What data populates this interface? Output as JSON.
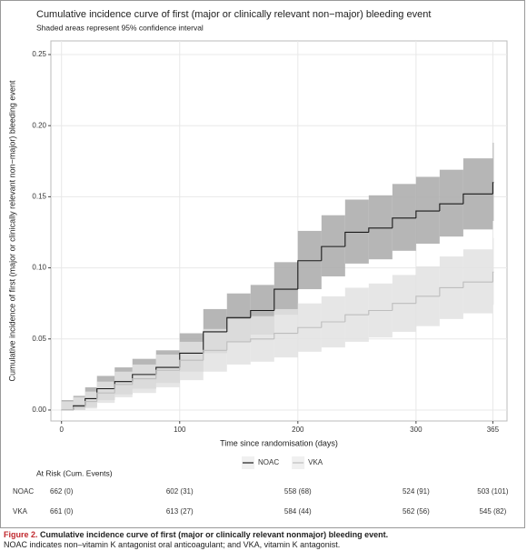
{
  "chart_data": {
    "type": "step",
    "title": "Cumulative incidence curve of first (major or clinically relevant non−major) bleeding event",
    "subtitle": "Shaded areas represent 95% confidence interval",
    "x_label": "Time since randomisation (days)",
    "y_label": "Cumulative incidence of first (major or clinically relevant non−major) bleeding event",
    "x": [
      0,
      10,
      20,
      30,
      45,
      60,
      80,
      100,
      120,
      140,
      160,
      180,
      200,
      220,
      240,
      260,
      280,
      300,
      320,
      340,
      365
    ],
    "series": [
      {
        "name": "NOAC",
        "color": "#1a1a1a",
        "fill": "#a9a9a9",
        "values": [
          0,
          0.003,
          0.008,
          0.015,
          0.02,
          0.025,
          0.03,
          0.04,
          0.055,
          0.065,
          0.07,
          0.085,
          0.105,
          0.115,
          0.125,
          0.128,
          0.135,
          0.14,
          0.145,
          0.152,
          0.16
        ],
        "lower": [
          0,
          0,
          0.002,
          0.007,
          0.011,
          0.015,
          0.019,
          0.027,
          0.04,
          0.048,
          0.053,
          0.067,
          0.085,
          0.094,
          0.103,
          0.106,
          0.112,
          0.117,
          0.122,
          0.127,
          0.133
        ],
        "upper": [
          0.007,
          0.01,
          0.016,
          0.024,
          0.03,
          0.036,
          0.042,
          0.054,
          0.071,
          0.082,
          0.088,
          0.104,
          0.126,
          0.137,
          0.148,
          0.151,
          0.159,
          0.164,
          0.169,
          0.177,
          0.188
        ]
      },
      {
        "name": "VKA",
        "color": "#bdbdbd",
        "fill": "#e2e2e2",
        "values": [
          0,
          0.002,
          0.006,
          0.012,
          0.018,
          0.022,
          0.028,
          0.035,
          0.042,
          0.048,
          0.05,
          0.054,
          0.058,
          0.062,
          0.067,
          0.07,
          0.075,
          0.08,
          0.086,
          0.09,
          0.097
        ],
        "lower": [
          0,
          0,
          0.001,
          0.005,
          0.009,
          0.012,
          0.016,
          0.021,
          0.027,
          0.032,
          0.034,
          0.037,
          0.041,
          0.044,
          0.048,
          0.051,
          0.055,
          0.059,
          0.064,
          0.068,
          0.074
        ],
        "upper": [
          0.006,
          0.009,
          0.013,
          0.02,
          0.027,
          0.032,
          0.039,
          0.048,
          0.057,
          0.064,
          0.066,
          0.071,
          0.075,
          0.08,
          0.086,
          0.089,
          0.095,
          0.101,
          0.108,
          0.113,
          0.121
        ]
      }
    ],
    "xlim": [
      -9,
      377
    ],
    "ylim": [
      -0.0077,
      0.2596
    ],
    "xticks": [
      0,
      100,
      200,
      300,
      365
    ],
    "yticks": [
      {
        "value": 0,
        "label": "0.00"
      },
      {
        "value": 0.05,
        "label": "0.05"
      },
      {
        "value": 0.1,
        "label": "0.10"
      },
      {
        "value": 0.15,
        "label": "0.15"
      },
      {
        "value": 0.2,
        "label": "0.20"
      },
      {
        "value": 0.25,
        "label": "0.25"
      }
    ],
    "grid": true,
    "legend": "bottom",
    "risk_table": {
      "title": "At Risk (Cum. Events)",
      "rows": [
        {
          "name": "NOAC",
          "cells": [
            "662 (0)",
            "602 (31)",
            "558 (68)",
            "524 (91)",
            "503 (101)"
          ]
        },
        {
          "name": "VKA",
          "cells": [
            "661 (0)",
            "613 (27)",
            "584 (44)",
            "562 (56)",
            "545 (82)"
          ]
        }
      ]
    }
  },
  "caption": {
    "label": "Figure 2.",
    "title": "Cumulative incidence curve of first (major or clinically relevant nonmajor) bleeding event.",
    "note": "NOAC indicates non–vitamin K antagonist oral anticoagulant; and VKA, vitamin K antagonist."
  }
}
